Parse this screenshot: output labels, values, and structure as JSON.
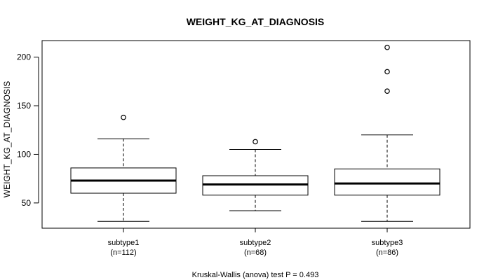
{
  "chart_data": {
    "type": "boxplot",
    "title": "WEIGHT_KG_AT_DIAGNOSIS",
    "ylabel": "WEIGHT_KG_AT_DIAGNOSIS",
    "xlabel": "",
    "ylim": [
      24,
      217
    ],
    "yticks": [
      50,
      100,
      150,
      200
    ],
    "subtitle": "Kruskal-Wallis (anova) test P = 0.493",
    "groups": [
      {
        "name": "subtype1",
        "n_label": "(n=112)",
        "whisker_low": 31,
        "q1": 60,
        "median": 73,
        "q3": 86,
        "whisker_high": 116,
        "outliers": [
          138
        ]
      },
      {
        "name": "subtype2",
        "n_label": "(n=68)",
        "whisker_low": 42,
        "q1": 58,
        "median": 69,
        "q3": 78,
        "whisker_high": 105,
        "outliers": [
          113
        ]
      },
      {
        "name": "subtype3",
        "n_label": "(n=86)",
        "whisker_low": 31,
        "q1": 58,
        "median": 70,
        "q3": 85,
        "whisker_high": 120,
        "outliers": [
          165,
          185,
          210
        ]
      }
    ]
  }
}
